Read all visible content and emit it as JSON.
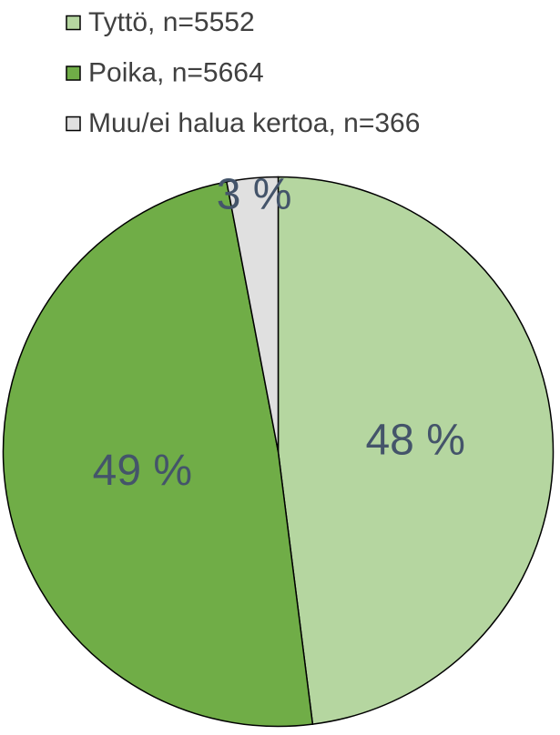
{
  "chart_data": {
    "type": "pie",
    "categories": [
      "Tyttö, n=5552",
      "Poika, n=5664",
      "Muu/ei halua kertoa, n=366"
    ],
    "values": [
      48,
      49,
      3
    ],
    "value_labels": [
      "48 %",
      "49 %",
      "3 %"
    ],
    "colors": [
      "#b5d6a0",
      "#70ad47",
      "#e0e0e0"
    ],
    "legend": "top"
  }
}
